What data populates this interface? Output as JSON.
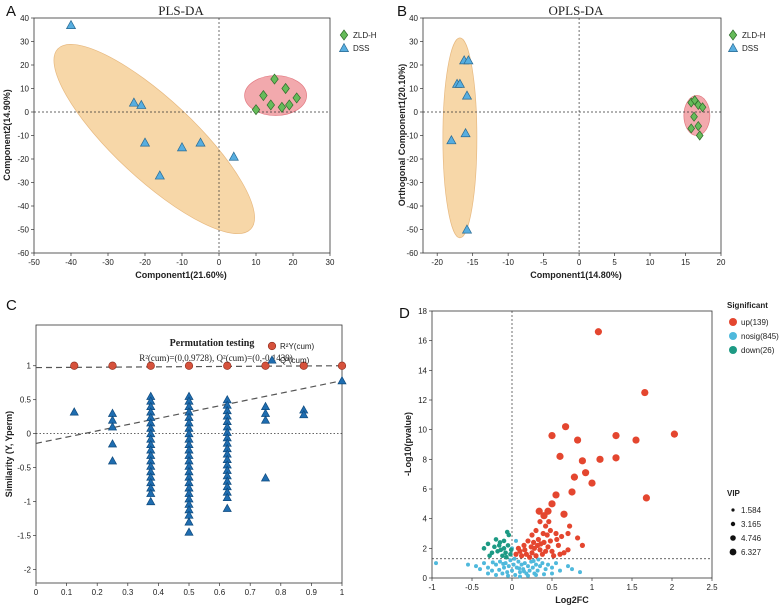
{
  "colors": {
    "green": "#66bb5a",
    "blue": "#57aee0",
    "orange_fill": "#f7d7a8",
    "pink_fill": "#f2a9ad",
    "red": "#e4462f",
    "lightblue": "#4fb9dc",
    "teal": "#1d9a84",
    "perm_red": "#d6523c",
    "perm_blue": "#1f6db0"
  },
  "chart_data": [
    {
      "panel": "A",
      "type": "scatter",
      "title": "PLS-DA",
      "xlabel": "Component1(21.60%)",
      "ylabel": "Component2(14.90%)",
      "xlim": [
        -50,
        30
      ],
      "ylim": [
        -60,
        40
      ],
      "xticks": [
        -50,
        -40,
        -30,
        -20,
        -10,
        0,
        10,
        20,
        30
      ],
      "yticks": [
        -60,
        -50,
        -40,
        -30,
        -20,
        -10,
        0,
        10,
        20,
        30,
        40
      ],
      "legend": [
        "ZLD-H",
        "DSS"
      ],
      "series": [
        {
          "name": "ZLD-H",
          "marker": "diamond",
          "points": [
            [
              12,
              7
            ],
            [
              15,
              14
            ],
            [
              18,
              10
            ],
            [
              21,
              6
            ],
            [
              14,
              3
            ],
            [
              17,
              2
            ],
            [
              19,
              3
            ],
            [
              10,
              1
            ]
          ]
        },
        {
          "name": "DSS",
          "marker": "triangle",
          "points": [
            [
              -40,
              37
            ],
            [
              -23,
              4
            ],
            [
              -21,
              3
            ],
            [
              -20,
              -13
            ],
            [
              -10,
              -15
            ],
            [
              -5,
              -13
            ],
            [
              -16,
              -27
            ],
            [
              4,
              -19
            ]
          ]
        }
      ]
    },
    {
      "panel": "B",
      "type": "scatter",
      "title": "OPLS-DA",
      "xlabel": "Component1(14.80%)",
      "ylabel": "Orthogonal Component1(20.10%)",
      "xlim": [
        -22,
        20
      ],
      "ylim": [
        -60,
        40
      ],
      "xticks": [
        -20,
        -15,
        -10,
        -5,
        0,
        5,
        10,
        15,
        20
      ],
      "yticks": [
        -60,
        -50,
        -40,
        -30,
        -20,
        -10,
        0,
        10,
        20,
        30,
        40
      ],
      "legend": [
        "ZLD-H",
        "DSS"
      ],
      "series": [
        {
          "name": "ZLD-H",
          "marker": "diamond",
          "points": [
            [
              15.8,
              4
            ],
            [
              16.3,
              5
            ],
            [
              16.8,
              3
            ],
            [
              17.4,
              2
            ],
            [
              16.2,
              -2
            ],
            [
              16.8,
              -6
            ],
            [
              15.8,
              -7
            ],
            [
              17.0,
              -10
            ]
          ]
        },
        {
          "name": "DSS",
          "marker": "triangle",
          "points": [
            [
              -16.2,
              22
            ],
            [
              -15.6,
              22
            ],
            [
              -17.2,
              12
            ],
            [
              -16.8,
              12
            ],
            [
              -15.8,
              7
            ],
            [
              -18,
              -12
            ],
            [
              -16,
              -9
            ],
            [
              -15.8,
              -50
            ]
          ]
        }
      ]
    },
    {
      "panel": "C",
      "type": "scatter",
      "title": "Permutation testing",
      "subtitle": "R²(cum)=(0,0.9728), Q²(cum)=(0,-0.1439)",
      "xlabel": "",
      "ylabel": "Similarity (Y, Yperm)",
      "xlim": [
        0,
        1
      ],
      "ylim": [
        -2.2,
        1.6
      ],
      "xticks": [
        0,
        0.1,
        0.2,
        0.3,
        0.4,
        0.5,
        0.6,
        0.7,
        0.8,
        0.9,
        1
      ],
      "yticks": [
        -2,
        -1.5,
        -1,
        -0.5,
        0,
        0.5,
        1
      ],
      "legend": [
        "R²Y(cum)",
        "Q²(cum)"
      ],
      "r2_points": [
        [
          0.125,
          1.0
        ],
        [
          0.25,
          1.0
        ],
        [
          0.375,
          1.0
        ],
        [
          0.5,
          1.0
        ],
        [
          0.625,
          1.0
        ],
        [
          0.75,
          1.0
        ],
        [
          0.875,
          1.0
        ],
        [
          1.0,
          1.0
        ]
      ],
      "q2_points": [
        [
          0.125,
          0.32
        ],
        [
          0.25,
          0.3
        ],
        [
          0.25,
          0.2
        ],
        [
          0.25,
          0.1
        ],
        [
          0.25,
          -0.15
        ],
        [
          0.25,
          -0.4
        ],
        [
          0.375,
          0.55
        ],
        [
          0.375,
          0.48
        ],
        [
          0.375,
          0.4
        ],
        [
          0.375,
          0.32
        ],
        [
          0.375,
          0.24
        ],
        [
          0.375,
          0.16
        ],
        [
          0.375,
          0.08
        ],
        [
          0.375,
          0.0
        ],
        [
          0.375,
          -0.08
        ],
        [
          0.375,
          -0.16
        ],
        [
          0.375,
          -0.24
        ],
        [
          0.375,
          -0.32
        ],
        [
          0.375,
          -0.4
        ],
        [
          0.375,
          -0.48
        ],
        [
          0.375,
          -0.56
        ],
        [
          0.375,
          -0.64
        ],
        [
          0.375,
          -0.72
        ],
        [
          0.375,
          -0.8
        ],
        [
          0.375,
          -0.88
        ],
        [
          0.375,
          -1.0
        ],
        [
          0.5,
          0.55
        ],
        [
          0.5,
          0.48
        ],
        [
          0.5,
          0.4
        ],
        [
          0.5,
          0.32
        ],
        [
          0.5,
          0.24
        ],
        [
          0.5,
          0.16
        ],
        [
          0.5,
          0.08
        ],
        [
          0.5,
          0.0
        ],
        [
          0.5,
          -0.08
        ],
        [
          0.5,
          -0.16
        ],
        [
          0.5,
          -0.24
        ],
        [
          0.5,
          -0.32
        ],
        [
          0.5,
          -0.4
        ],
        [
          0.5,
          -0.48
        ],
        [
          0.5,
          -0.56
        ],
        [
          0.5,
          -0.64
        ],
        [
          0.5,
          -0.72
        ],
        [
          0.5,
          -0.8
        ],
        [
          0.5,
          -0.88
        ],
        [
          0.5,
          -0.96
        ],
        [
          0.5,
          -1.04
        ],
        [
          0.5,
          -1.12
        ],
        [
          0.5,
          -1.2
        ],
        [
          0.5,
          -1.3
        ],
        [
          0.5,
          -1.45
        ],
        [
          0.625,
          0.5
        ],
        [
          0.625,
          0.42
        ],
        [
          0.625,
          0.34
        ],
        [
          0.625,
          0.26
        ],
        [
          0.625,
          0.18
        ],
        [
          0.625,
          0.1
        ],
        [
          0.625,
          0.02
        ],
        [
          0.625,
          -0.06
        ],
        [
          0.625,
          -0.14
        ],
        [
          0.625,
          -0.22
        ],
        [
          0.625,
          -0.3
        ],
        [
          0.625,
          -0.38
        ],
        [
          0.625,
          -0.46
        ],
        [
          0.625,
          -0.54
        ],
        [
          0.625,
          -0.62
        ],
        [
          0.625,
          -0.7
        ],
        [
          0.625,
          -0.78
        ],
        [
          0.625,
          -0.86
        ],
        [
          0.625,
          -0.94
        ],
        [
          0.625,
          -1.1
        ],
        [
          0.75,
          0.4
        ],
        [
          0.75,
          0.3
        ],
        [
          0.75,
          0.2
        ],
        [
          0.75,
          -0.65
        ],
        [
          0.875,
          0.35
        ],
        [
          0.875,
          0.28
        ],
        [
          1.0,
          0.78
        ]
      ],
      "r2_intercept": 0.9728,
      "q2_intercept": -0.1439
    },
    {
      "panel": "D",
      "type": "scatter",
      "title": "",
      "xlabel": "Log2FC",
      "ylabel": "-Log10(pvalue)",
      "xlim": [
        -1,
        2.5
      ],
      "ylim": [
        0,
        18
      ],
      "xticks": [
        -1,
        -0.5,
        0,
        0.5,
        1,
        1.5,
        2,
        2.5
      ],
      "yticks": [
        0,
        2,
        4,
        6,
        8,
        10,
        12,
        14,
        16,
        18
      ],
      "legend_title": "Significant",
      "legend": [
        "up(139)",
        "nosig(845)",
        "down(26)"
      ],
      "vip_title": "VIP",
      "vip_sizes": [
        "1.584",
        "3.165",
        "4.746",
        "6.327"
      ],
      "up_points": [
        [
          1.08,
          16.6
        ],
        [
          1.66,
          12.5
        ],
        [
          2.03,
          9.7
        ],
        [
          1.3,
          9.6
        ],
        [
          0.67,
          10.2
        ],
        [
          1.55,
          9.3
        ],
        [
          0.82,
          9.3
        ],
        [
          1.1,
          8.0
        ],
        [
          1.3,
          8.1
        ],
        [
          0.88,
          7.9
        ],
        [
          0.5,
          9.6
        ],
        [
          0.6,
          8.2
        ],
        [
          0.92,
          7.1
        ],
        [
          0.78,
          6.8
        ],
        [
          1.0,
          6.4
        ],
        [
          0.75,
          5.8
        ],
        [
          1.68,
          5.4
        ],
        [
          0.55,
          5.6
        ],
        [
          0.65,
          4.3
        ],
        [
          0.45,
          4.5
        ],
        [
          0.5,
          5.0
        ],
        [
          0.4,
          4.2
        ],
        [
          0.35,
          3.8
        ],
        [
          0.42,
          3.5
        ],
        [
          0.48,
          3.2
        ],
        [
          0.55,
          3.0
        ],
        [
          0.62,
          2.8
        ],
        [
          0.7,
          3.0
        ],
        [
          0.82,
          2.7
        ],
        [
          0.88,
          2.2
        ],
        [
          0.3,
          3.2
        ],
        [
          0.25,
          2.9
        ],
        [
          0.33,
          2.6
        ],
        [
          0.4,
          2.4
        ],
        [
          0.45,
          2.1
        ],
        [
          0.2,
          2.5
        ],
        [
          0.15,
          2.2
        ],
        [
          0.28,
          2.0
        ],
        [
          0.35,
          1.9
        ],
        [
          0.5,
          1.8
        ],
        [
          0.58,
          2.2
        ],
        [
          0.65,
          1.7
        ],
        [
          0.1,
          1.8
        ],
        [
          0.18,
          1.6
        ],
        [
          0.25,
          1.7
        ],
        [
          0.38,
          1.6
        ],
        [
          0.42,
          1.8
        ],
        [
          0.3,
          1.5
        ],
        [
          0.22,
          1.4
        ],
        [
          0.12,
          1.5
        ],
        [
          0.08,
          2.0
        ],
        [
          0.52,
          1.5
        ],
        [
          0.48,
          2.5
        ],
        [
          0.36,
          2.3
        ],
        [
          0.6,
          1.6
        ],
        [
          0.7,
          1.9
        ],
        [
          0.56,
          2.6
        ],
        [
          0.27,
          2.4
        ],
        [
          0.44,
          2.9
        ],
        [
          0.32,
          2.2
        ],
        [
          0.16,
          1.9
        ],
        [
          0.24,
          2.1
        ],
        [
          0.05,
          1.6
        ],
        [
          0.39,
          3.0
        ],
        [
          0.46,
          3.8
        ],
        [
          0.34,
          4.5
        ],
        [
          0.72,
          3.5
        ]
      ],
      "down_points": [
        [
          -0.3,
          2.3
        ],
        [
          -0.22,
          2.1
        ],
        [
          -0.15,
          2.4
        ],
        [
          -0.1,
          2.0
        ],
        [
          -0.05,
          2.2
        ],
        [
          -0.18,
          1.8
        ],
        [
          -0.08,
          1.7
        ],
        [
          -0.12,
          1.5
        ],
        [
          -0.25,
          1.7
        ],
        [
          -0.02,
          1.6
        ],
        [
          -0.2,
          2.6
        ],
        [
          -0.04,
          2.9
        ],
        [
          -0.14,
          1.9
        ],
        [
          -0.07,
          1.4
        ],
        [
          -0.28,
          1.5
        ],
        [
          -0.1,
          2.5
        ],
        [
          -0.35,
          2.0
        ],
        [
          -0.16,
          2.2
        ],
        [
          -0.01,
          1.9
        ],
        [
          -0.06,
          3.1
        ]
      ],
      "nosig_points": [
        [
          -0.95,
          1.0
        ],
        [
          -0.55,
          0.9
        ],
        [
          -0.45,
          0.8
        ],
        [
          -0.4,
          0.6
        ],
        [
          -0.35,
          1.0
        ],
        [
          -0.3,
          0.7
        ],
        [
          -0.25,
          0.5
        ],
        [
          -0.2,
          0.9
        ],
        [
          -0.15,
          1.1
        ],
        [
          -0.12,
          0.3
        ],
        [
          -0.1,
          0.7
        ],
        [
          -0.08,
          1.0
        ],
        [
          -0.06,
          0.4
        ],
        [
          -0.04,
          0.8
        ],
        [
          -0.02,
          1.2
        ],
        [
          0.0,
          0.5
        ],
        [
          0.02,
          0.9
        ],
        [
          0.04,
          0.2
        ],
        [
          0.06,
          0.7
        ],
        [
          0.08,
          1.1
        ],
        [
          0.1,
          0.4
        ],
        [
          0.12,
          0.9
        ],
        [
          0.14,
          0.6
        ],
        [
          0.16,
          1.0
        ],
        [
          0.18,
          0.3
        ],
        [
          0.2,
          0.8
        ],
        [
          0.22,
          0.5
        ],
        [
          0.24,
          1.1
        ],
        [
          0.26,
          0.7
        ],
        [
          0.28,
          0.3
        ],
        [
          0.3,
          0.9
        ],
        [
          0.32,
          0.5
        ],
        [
          0.35,
          0.8
        ],
        [
          0.38,
          1.0
        ],
        [
          0.42,
          0.6
        ],
        [
          0.45,
          0.9
        ],
        [
          0.5,
          0.7
        ],
        [
          0.55,
          1.0
        ],
        [
          0.6,
          0.5
        ],
        [
          0.7,
          0.8
        ],
        [
          0.75,
          0.6
        ],
        [
          0.85,
          0.4
        ],
        [
          0.05,
          2.5
        ],
        [
          0.0,
          2.0
        ],
        [
          -0.05,
          0.15
        ],
        [
          0.1,
          0.1
        ],
        [
          0.2,
          0.15
        ],
        [
          -0.2,
          0.2
        ],
        [
          -0.3,
          0.3
        ],
        [
          0.3,
          0.2
        ],
        [
          0.4,
          0.25
        ],
        [
          0.5,
          0.3
        ],
        [
          0.15,
          0.45
        ],
        [
          -0.16,
          0.55
        ],
        [
          0.09,
          0.65
        ],
        [
          -0.11,
          0.95
        ],
        [
          0.27,
          1.15
        ],
        [
          0.33,
          1.25
        ],
        [
          -0.24,
          1.05
        ],
        [
          0.03,
          1.3
        ]
      ],
      "vline": 0,
      "hline": 1.3
    }
  ]
}
